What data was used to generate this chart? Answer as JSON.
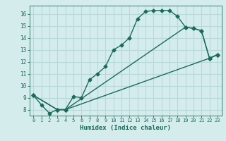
{
  "xlabel": "Humidex (Indice chaleur)",
  "bg_color": "#d4edec",
  "grid_color": "#b8d8d8",
  "line_color": "#1a6b5a",
  "xlim": [
    -0.5,
    23.5
  ],
  "ylim": [
    7.5,
    16.7
  ],
  "xticks": [
    0,
    1,
    2,
    3,
    4,
    5,
    6,
    7,
    8,
    9,
    10,
    11,
    12,
    13,
    14,
    15,
    16,
    17,
    18,
    19,
    20,
    21,
    22,
    23
  ],
  "yticks": [
    8,
    9,
    10,
    11,
    12,
    13,
    14,
    15,
    16
  ],
  "line1_x": [
    0,
    1,
    2,
    3,
    4,
    5,
    6,
    7,
    8,
    9,
    10,
    11,
    12,
    13,
    14,
    15,
    16,
    17,
    18,
    19,
    20,
    21,
    22,
    23
  ],
  "line1_y": [
    9.2,
    8.4,
    7.7,
    8.0,
    8.0,
    9.1,
    9.0,
    10.5,
    11.0,
    11.6,
    13.0,
    13.4,
    14.0,
    15.6,
    16.2,
    16.3,
    16.3,
    16.3,
    15.8,
    14.9,
    14.8,
    14.6,
    12.3,
    12.6
  ],
  "line2_x": [
    0,
    3,
    4,
    22,
    23
  ],
  "line2_y": [
    9.2,
    8.0,
    8.0,
    12.3,
    12.6
  ],
  "line3_x": [
    0,
    3,
    4,
    19,
    20,
    21,
    22,
    23
  ],
  "line3_y": [
    9.2,
    8.0,
    8.0,
    14.9,
    14.8,
    14.6,
    12.3,
    12.6
  ],
  "marker": "D",
  "markersize": 2.5,
  "linewidth": 1.0
}
